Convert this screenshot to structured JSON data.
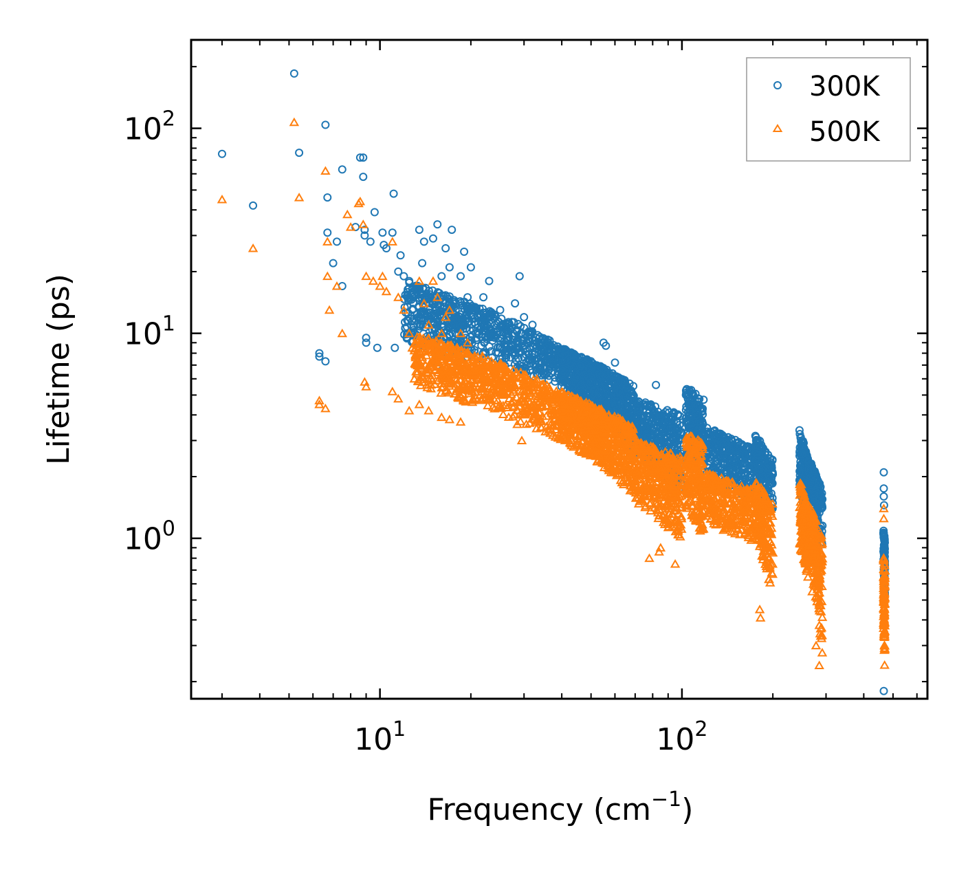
{
  "chart_data": {
    "type": "scatter",
    "title": "",
    "xlabel": "Frequency (cm",
    "xlabel_sup": "−1",
    "xlabel_end": ")",
    "ylabel": "Lifetime (ps)",
    "xscale": "log",
    "yscale": "log",
    "xlim": [
      2.37,
      650
    ],
    "ylim": [
      0.165,
      270
    ],
    "x_ticks": [
      {
        "base": "10",
        "exp": "1",
        "value": 10
      },
      {
        "base": "10",
        "exp": "2",
        "value": 100
      }
    ],
    "y_ticks": [
      {
        "base": "10",
        "exp": "0",
        "value": 1
      },
      {
        "base": "10",
        "exp": "1",
        "value": 10
      },
      {
        "base": "10",
        "exp": "2",
        "value": 100
      }
    ],
    "legend_position": "top-right",
    "series": [
      {
        "name": "300K",
        "color": "#1f77b4",
        "marker": "circle",
        "points": [
          [
            3.0,
            75
          ],
          [
            3.8,
            42
          ],
          [
            5.2,
            185
          ],
          [
            5.4,
            76
          ],
          [
            6.3,
            8
          ],
          [
            6.3,
            7.7
          ],
          [
            6.6,
            104
          ],
          [
            6.6,
            7.3
          ],
          [
            6.7,
            31
          ],
          [
            6.7,
            46
          ],
          [
            7.0,
            22
          ],
          [
            7.2,
            28
          ],
          [
            7.5,
            63
          ],
          [
            7.5,
            17
          ],
          [
            8.3,
            33
          ],
          [
            8.6,
            72
          ],
          [
            8.8,
            72
          ],
          [
            8.8,
            58
          ],
          [
            8.9,
            30
          ],
          [
            8.9,
            32
          ],
          [
            9.0,
            9.5
          ],
          [
            9.0,
            9
          ],
          [
            9.3,
            28
          ],
          [
            9.6,
            39
          ],
          [
            9.8,
            8.5
          ],
          [
            10.2,
            31
          ],
          [
            10.3,
            27
          ],
          [
            10.5,
            26
          ],
          [
            11.0,
            31
          ],
          [
            11.1,
            48
          ],
          [
            11.2,
            8.5
          ],
          [
            11.5,
            20
          ],
          [
            11.7,
            24
          ],
          [
            12.0,
            19
          ],
          [
            12.5,
            18
          ],
          [
            12.8,
            13
          ],
          [
            13.0,
            10
          ],
          [
            13.5,
            32
          ],
          [
            13.8,
            22
          ],
          [
            14.0,
            28
          ],
          [
            14.3,
            11
          ],
          [
            14.5,
            14
          ],
          [
            15.0,
            29
          ],
          [
            15.5,
            34
          ],
          [
            16.0,
            19
          ],
          [
            16.5,
            26
          ],
          [
            17.0,
            21
          ],
          [
            17.3,
            32
          ],
          [
            17.8,
            12
          ],
          [
            18.5,
            19
          ],
          [
            19.0,
            25
          ],
          [
            19.5,
            15
          ],
          [
            20.0,
            21
          ],
          [
            21.0,
            12
          ],
          [
            22.0,
            15
          ],
          [
            23.0,
            18
          ],
          [
            24.0,
            11
          ],
          [
            25.0,
            13
          ],
          [
            26.5,
            10
          ],
          [
            28.0,
            14
          ],
          [
            29.0,
            19
          ],
          [
            30.0,
            12
          ],
          [
            32.0,
            11
          ],
          [
            13.5,
            9
          ],
          [
            15.5,
            7
          ],
          [
            17.0,
            6.5
          ],
          [
            20.0,
            8
          ]
        ],
        "clusters": [
          {
            "x": [
              12,
              40
            ],
            "y_top": [
              18,
              8.5
            ],
            "y_bot": [
              9,
              5.5
            ],
            "n": 700
          },
          {
            "x": [
              40,
              70
            ],
            "y_top": [
              8.5,
              5.5
            ],
            "y_bot": [
              5.5,
              2.6
            ],
            "n": 700
          },
          {
            "x": [
              70,
              100
            ],
            "y_top": [
              4.8,
              4.0
            ],
            "y_bot": [
              2.4,
              1.6
            ],
            "n": 400
          },
          {
            "x": [
              103,
              118
            ],
            "y_top": [
              5.5,
              4.8
            ],
            "y_bot": [
              2.4,
              1.7
            ],
            "n": 220
          },
          {
            "x": [
              120,
              175
            ],
            "y_top": [
              3.5,
              2.7
            ],
            "y_bot": [
              2.0,
              1.5
            ],
            "n": 320
          },
          {
            "x": [
              175,
              200
            ],
            "y_top": [
              3.2,
              2.4
            ],
            "y_bot": [
              1.8,
              1.3
            ],
            "n": 180
          },
          {
            "x": [
              245,
              262
            ],
            "y_top": [
              3.4,
              2.4
            ],
            "y_bot": [
              1.7,
              1.1
            ],
            "n": 160
          },
          {
            "x": [
              262,
              292
            ],
            "y_top": [
              2.5,
              1.7
            ],
            "y_bot": [
              1.5,
              0.9
            ],
            "n": 180
          },
          {
            "x": [
              465,
              470
            ],
            "y_top": [
              1.1,
              1.0
            ],
            "y_bot": [
              0.7,
              0.45
            ],
            "n": 90
          }
        ],
        "extra_points": [
          [
            55,
            9
          ],
          [
            56,
            8.7
          ],
          [
            60,
            7.2
          ],
          [
            82,
            5.6
          ],
          [
            466,
            2.1
          ],
          [
            466,
            1.75
          ],
          [
            466,
            1.6
          ],
          [
            467,
            1.45
          ],
          [
            466,
            0.18
          ]
        ]
      },
      {
        "name": "500K",
        "color": "#ff7f0e",
        "marker": "triangle",
        "points": [
          [
            3.0,
            45
          ],
          [
            3.8,
            26
          ],
          [
            5.2,
            107
          ],
          [
            5.4,
            46
          ],
          [
            6.3,
            4.7
          ],
          [
            6.3,
            4.5
          ],
          [
            6.6,
            62
          ],
          [
            6.6,
            4.3
          ],
          [
            6.7,
            19
          ],
          [
            6.7,
            28
          ],
          [
            6.8,
            13
          ],
          [
            7.2,
            17
          ],
          [
            7.5,
            10
          ],
          [
            7.8,
            38
          ],
          [
            8.0,
            33
          ],
          [
            8.5,
            43
          ],
          [
            8.6,
            44
          ],
          [
            8.8,
            34
          ],
          [
            8.9,
            5.8
          ],
          [
            9.0,
            5.5
          ],
          [
            9.0,
            19
          ],
          [
            9.5,
            18
          ],
          [
            10.0,
            17
          ],
          [
            10.2,
            19
          ],
          [
            10.5,
            16
          ],
          [
            11.0,
            28
          ],
          [
            11.0,
            5.2
          ],
          [
            11.5,
            15
          ],
          [
            12.0,
            13
          ],
          [
            12.5,
            10
          ],
          [
            12.8,
            8.5
          ],
          [
            13.0,
            6
          ],
          [
            13.5,
            18
          ],
          [
            14.0,
            14
          ],
          [
            14.5,
            11
          ],
          [
            15.0,
            18
          ],
          [
            15.5,
            15
          ],
          [
            16.0,
            10
          ],
          [
            16.5,
            12
          ],
          [
            17.0,
            13
          ],
          [
            18.0,
            7.5
          ],
          [
            18.5,
            10
          ],
          [
            19.5,
            9
          ],
          [
            20.0,
            5.5
          ],
          [
            21.0,
            6
          ],
          [
            22.0,
            7
          ],
          [
            23.0,
            5
          ],
          [
            24.5,
            6
          ],
          [
            25.0,
            4.5
          ],
          [
            27.0,
            5.5
          ],
          [
            28.5,
            3.6
          ],
          [
            29.5,
            3
          ],
          [
            11.5,
            4.8
          ],
          [
            12.5,
            4.2
          ],
          [
            13.5,
            4.5
          ],
          [
            14.5,
            4.2
          ],
          [
            16.0,
            3.9
          ],
          [
            17.0,
            3.8
          ],
          [
            18.5,
            3.7
          ]
        ],
        "clusters": [
          {
            "x": [
              13,
              40
            ],
            "y_top": [
              10,
              5.2
            ],
            "y_bot": [
              5.5,
              3.0
            ],
            "n": 700
          },
          {
            "x": [
              40,
              70
            ],
            "y_top": [
              5.2,
              3.5
            ],
            "y_bot": [
              3.0,
              1.6
            ],
            "n": 700
          },
          {
            "x": [
              70,
              100
            ],
            "y_top": [
              3.0,
              2.5
            ],
            "y_bot": [
              1.5,
              0.95
            ],
            "n": 400
          },
          {
            "x": [
              103,
              118
            ],
            "y_top": [
              3.3,
              2.9
            ],
            "y_bot": [
              1.4,
              1.0
            ],
            "n": 220
          },
          {
            "x": [
              120,
              175
            ],
            "y_top": [
              2.1,
              1.7
            ],
            "y_bot": [
              1.2,
              0.9
            ],
            "n": 320
          },
          {
            "x": [
              175,
              200
            ],
            "y_top": [
              1.9,
              1.5
            ],
            "y_bot": [
              1.0,
              0.5
            ],
            "n": 180
          },
          {
            "x": [
              245,
              262
            ],
            "y_top": [
              2.0,
              1.4
            ],
            "y_bot": [
              0.9,
              0.6
            ],
            "n": 160
          },
          {
            "x": [
              262,
              292
            ],
            "y_top": [
              1.5,
              1.0
            ],
            "y_bot": [
              0.8,
              0.24
            ],
            "n": 200
          },
          {
            "x": [
              465,
              470
            ],
            "y_top": [
              0.85,
              0.7
            ],
            "y_bot": [
              0.35,
              0.2
            ],
            "n": 100
          }
        ],
        "extra_points": [
          [
            95,
            0.75
          ],
          [
            84,
            0.86
          ],
          [
            78,
            0.8
          ],
          [
            85,
            0.9
          ],
          [
            182,
            0.41
          ],
          [
            181,
            0.45
          ],
          [
            197,
            0.75
          ],
          [
            200,
            0.85
          ],
          [
            270,
            0.55
          ],
          [
            278,
            0.3
          ],
          [
            285,
            0.24
          ],
          [
            466,
            1.4
          ],
          [
            466,
            1.25
          ]
        ]
      }
    ]
  }
}
